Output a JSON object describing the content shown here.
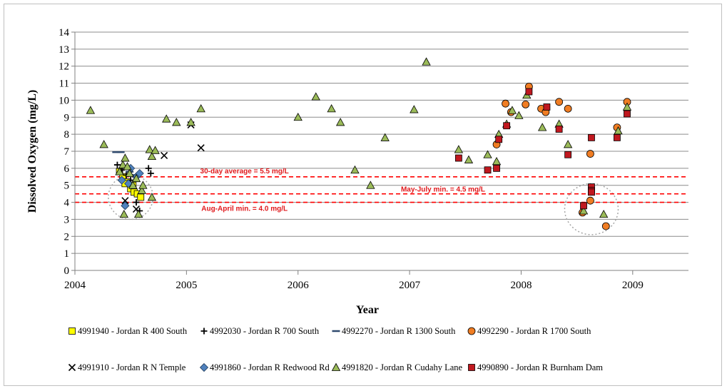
{
  "chart_data": {
    "type": "scatter",
    "title": "",
    "xlabel": "Year",
    "ylabel": "Dissolved Oxygen (mg/L)",
    "xlim": [
      2004,
      2009.5
    ],
    "ylim": [
      0,
      14
    ],
    "x_ticks": [
      "2004",
      "2005",
      "2006",
      "2007",
      "2008",
      "2009"
    ],
    "y_ticks": [
      "0",
      "1",
      "2",
      "3",
      "4",
      "5",
      "6",
      "7",
      "8",
      "9",
      "10",
      "11",
      "12",
      "13",
      "14"
    ],
    "grid": "horizontal",
    "legend_position": "bottom",
    "colors": {
      "standard_line": "#ff0000",
      "circle": "#a6a6a6"
    },
    "reference_lines": [
      {
        "y": 5.5,
        "label": "30-day average = 5.5 mg/L",
        "label_x": 2005.52
      },
      {
        "y": 4.5,
        "label": "May-July  min. = 4.5 mg/L",
        "label_x": 2007.3
      },
      {
        "y": 4.0,
        "label": "Aug-April min. = 4.0 mg/L",
        "label_x": 2005.52
      }
    ],
    "highlight_circles": [
      {
        "x": 2004.5,
        "y": 4.3,
        "rx": 0.2,
        "ry": 1.3
      },
      {
        "x": 2008.63,
        "y": 3.6,
        "rx": 0.24,
        "ry": 1.5
      }
    ],
    "series": [
      {
        "name": "4991940 - Jordan R 400 South",
        "marker": "square",
        "color": "#ffff00",
        "points": [
          [
            2004.4,
            5.8
          ],
          [
            2004.43,
            5.5
          ],
          [
            2004.47,
            5.2
          ],
          [
            2004.5,
            4.8
          ],
          [
            2004.53,
            4.6
          ],
          [
            2004.56,
            4.5
          ],
          [
            2004.59,
            4.3
          ],
          [
            2004.45,
            5.1
          ],
          [
            2004.52,
            5.0
          ]
        ]
      },
      {
        "name": "4992030 - Jordan R 700 South",
        "marker": "plus",
        "color": "#000000",
        "points": [
          [
            2004.38,
            6.2
          ],
          [
            2004.42,
            5.9
          ],
          [
            2004.46,
            5.6
          ],
          [
            2004.5,
            5.3
          ],
          [
            2004.55,
            4.0
          ],
          [
            2004.58,
            3.5
          ],
          [
            2004.66,
            6.0
          ],
          [
            2004.68,
            5.7
          ]
        ]
      },
      {
        "name": "4992270 - Jordan R 1300 South",
        "marker": "dash",
        "color": "#2f4a6e",
        "points": [
          [
            2004.37,
            6.95
          ],
          [
            2004.41,
            6.95
          ],
          [
            2004.45,
            6.1
          ],
          [
            2004.49,
            5.8
          ],
          [
            2004.53,
            5.6
          ]
        ]
      },
      {
        "name": "4992290 - Jordan R 1700 South",
        "marker": "circle",
        "color": "#f07d23",
        "points": [
          [
            2007.78,
            7.4
          ],
          [
            2007.86,
            9.8
          ],
          [
            2007.91,
            9.3
          ],
          [
            2008.04,
            9.75
          ],
          [
            2008.07,
            10.8
          ],
          [
            2008.18,
            9.5
          ],
          [
            2008.22,
            9.3
          ],
          [
            2008.34,
            9.9
          ],
          [
            2008.42,
            9.5
          ],
          [
            2008.55,
            3.4
          ],
          [
            2008.62,
            4.1
          ],
          [
            2008.62,
            6.85
          ],
          [
            2008.76,
            2.6
          ],
          [
            2008.86,
            8.4
          ],
          [
            2008.95,
            9.9
          ]
        ]
      },
      {
        "name": "4991910 - Jordan R N Temple",
        "marker": "x",
        "color": "#000000",
        "points": [
          [
            2004.45,
            4.1
          ],
          [
            2004.55,
            3.6
          ],
          [
            2004.8,
            6.75
          ],
          [
            2005.04,
            8.55
          ],
          [
            2005.13,
            7.2
          ]
        ]
      },
      {
        "name": "4991860 - Jordan R Redwood Rd",
        "marker": "diamond",
        "color": "#4f81bd",
        "points": [
          [
            2004.42,
            5.3
          ],
          [
            2004.45,
            3.8
          ],
          [
            2004.5,
            6.0
          ],
          [
            2004.55,
            5.5
          ],
          [
            2004.58,
            5.7
          ],
          [
            2004.48,
            5.1
          ]
        ]
      },
      {
        "name": "4991820 - Jordan R Cudahy Lane",
        "marker": "triangle",
        "color": "#9bbb59",
        "points": [
          [
            2004.14,
            9.4
          ],
          [
            2004.26,
            7.4
          ],
          [
            2004.4,
            5.8
          ],
          [
            2004.43,
            6.2
          ],
          [
            2004.45,
            6.6
          ],
          [
            2004.44,
            3.3
          ],
          [
            2004.47,
            6.1
          ],
          [
            2004.49,
            5.7
          ],
          [
            2004.52,
            5.0
          ],
          [
            2004.55,
            5.4
          ],
          [
            2004.57,
            3.3
          ],
          [
            2004.6,
            4.7
          ],
          [
            2004.61,
            5.0
          ],
          [
            2004.67,
            7.1
          ],
          [
            2004.69,
            6.7
          ],
          [
            2004.72,
            7.05
          ],
          [
            2004.69,
            4.3
          ],
          [
            2004.82,
            8.9
          ],
          [
            2004.91,
            8.7
          ],
          [
            2005.04,
            8.7
          ],
          [
            2005.13,
            9.5
          ],
          [
            2006.0,
            9.0
          ],
          [
            2006.16,
            10.2
          ],
          [
            2006.3,
            9.5
          ],
          [
            2006.38,
            8.7
          ],
          [
            2006.51,
            5.9
          ],
          [
            2006.65,
            5.0
          ],
          [
            2006.78,
            7.8
          ],
          [
            2007.04,
            9.45
          ],
          [
            2007.15,
            12.25
          ],
          [
            2007.44,
            7.1
          ],
          [
            2007.53,
            6.5
          ],
          [
            2007.7,
            6.8
          ],
          [
            2007.78,
            6.4
          ],
          [
            2007.8,
            8.0
          ],
          [
            2007.87,
            8.6
          ],
          [
            2007.92,
            9.4
          ],
          [
            2007.98,
            9.1
          ],
          [
            2008.05,
            10.3
          ],
          [
            2008.19,
            8.4
          ],
          [
            2008.34,
            8.6
          ],
          [
            2008.42,
            7.4
          ],
          [
            2008.56,
            3.5
          ],
          [
            2008.74,
            3.3
          ],
          [
            2008.87,
            8.2
          ],
          [
            2008.95,
            9.6
          ]
        ]
      },
      {
        "name": "4990890 - Jordan R Burnham Dam",
        "marker": "square",
        "color": "#c0181f",
        "points": [
          [
            2007.44,
            6.6
          ],
          [
            2007.7,
            5.9
          ],
          [
            2007.78,
            6.0
          ],
          [
            2007.8,
            7.7
          ],
          [
            2007.87,
            8.5
          ],
          [
            2008.07,
            10.5
          ],
          [
            2008.23,
            9.6
          ],
          [
            2008.34,
            8.3
          ],
          [
            2008.42,
            6.8
          ],
          [
            2008.56,
            3.8
          ],
          [
            2008.63,
            7.8
          ],
          [
            2008.63,
            4.9
          ],
          [
            2008.63,
            4.7
          ],
          [
            2008.63,
            4.6
          ],
          [
            2008.86,
            7.8
          ],
          [
            2008.95,
            9.2
          ]
        ]
      }
    ]
  }
}
